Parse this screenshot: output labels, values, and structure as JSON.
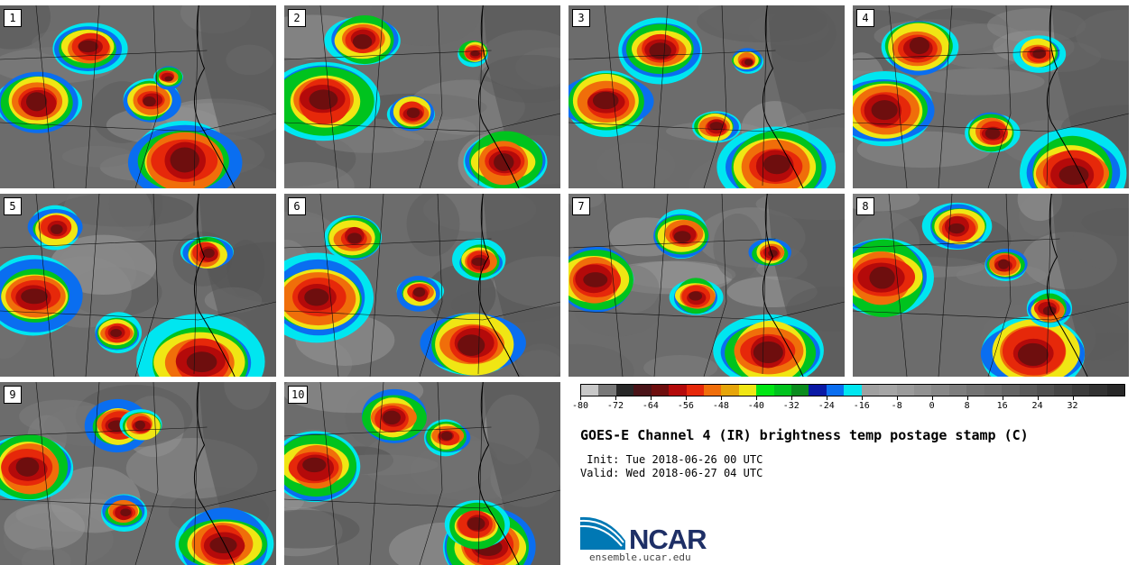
{
  "panels": [
    {
      "label": "1",
      "seed": 11
    },
    {
      "label": "2",
      "seed": 23
    },
    {
      "label": "3",
      "seed": 37
    },
    {
      "label": "4",
      "seed": 41
    },
    {
      "label": "5",
      "seed": 53
    },
    {
      "label": "6",
      "seed": 67
    },
    {
      "label": "7",
      "seed": 71
    },
    {
      "label": "8",
      "seed": 83
    },
    {
      "label": "9",
      "seed": 97
    },
    {
      "label": "10",
      "seed": 109
    }
  ],
  "colorbar": {
    "colors": [
      "#c8c8c8",
      "#787878",
      "#282828",
      "#4a1418",
      "#6e0e0e",
      "#b40a0a",
      "#e6280a",
      "#f06e0a",
      "#e6a50a",
      "#f0e614",
      "#00e614",
      "#00c31e",
      "#0a8c1e",
      "#0a19a5",
      "#0a6ef0",
      "#00e6f0",
      "#a0a0a0",
      "#a5a5a5",
      "#9b9b9b",
      "#919191",
      "#878787",
      "#7d7d7d",
      "#737373",
      "#6e6e6e",
      "#646464",
      "#5a5a5a",
      "#505050",
      "#464646",
      "#3c3c3c",
      "#323232",
      "#282828"
    ],
    "tick_values": [
      "-80",
      "-72",
      "-64",
      "-56",
      "-48",
      "-40",
      "-32",
      "-24",
      "-16",
      "-8",
      "0",
      "8",
      "16",
      "24",
      "32"
    ]
  },
  "title": "GOES-E Channel 4 (IR) brightness temp postage stamp (C)",
  "init": " Init: Tue 2018-06-26 00 UTC",
  "valid": "Valid: Wed 2018-06-27 04 UTC",
  "logo": {
    "text": "NCAR",
    "url": "ensemble.ucar.edu",
    "color": "#0078b4"
  }
}
